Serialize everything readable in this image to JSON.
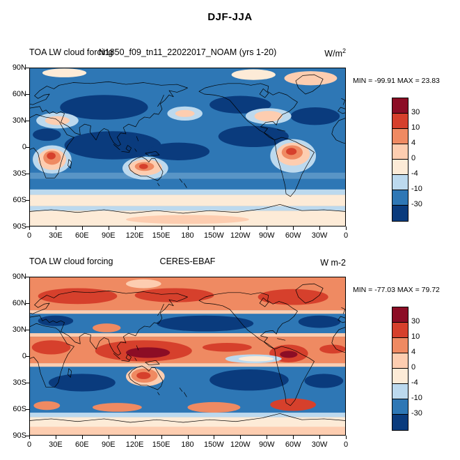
{
  "figure_title": "DJF-JJA",
  "panels": [
    {
      "left_title": "TOA LW cloud forcing",
      "center_title": "N1850_f09_tn11_22022017_NOAM (yrs 1-20)",
      "units_base": "W/m",
      "units_sup": "2",
      "minmax": "MIN = -99.91 MAX =  23.83"
    },
    {
      "left_title": "TOA LW cloud forcing",
      "center_title": "CERES-EBAF",
      "units_base": "W m-2",
      "units_sup": "",
      "minmax": "MIN = -77.03 MAX =  79.72"
    }
  ],
  "axes": {
    "lat_ticks": [
      "90N",
      "60N",
      "30N",
      "0",
      "30S",
      "60S",
      "90S"
    ],
    "lon_ticks": [
      "0",
      "30E",
      "60E",
      "90E",
      "120E",
      "150E",
      "180",
      "150W",
      "120W",
      "90W",
      "60W",
      "30W",
      "0"
    ]
  },
  "colorbar": {
    "labels": [
      "30",
      "10",
      "4",
      "0",
      "-4",
      "-10",
      "-30"
    ],
    "colors": [
      "#8c0d25",
      "#d6402c",
      "#ef8a62",
      "#fdcdb0",
      "#fdebd7",
      "#bcd9ee",
      "#2e77b5",
      "#0a3b7d"
    ]
  },
  "chart_data": [
    {
      "type": "heatmap",
      "figure_title": "DJF-JJA",
      "title": "TOA LW cloud forcing",
      "subtitle": "N1850_f09_tn11_22022017_NOAM (yrs 1-20)",
      "units": "W/m^2",
      "stat_min": -99.91,
      "stat_max": 23.83,
      "colorbar_levels": [
        30,
        10,
        4,
        0,
        -4,
        -10,
        -30
      ],
      "colorbar_colors": [
        "#8c0d25",
        "#d6402c",
        "#ef8a62",
        "#fdcdb0",
        "#fdebd7",
        "#bcd9ee",
        "#2e77b5",
        "#0a3b7d"
      ],
      "x": {
        "ticks": [
          "0",
          "30E",
          "60E",
          "90E",
          "120E",
          "150E",
          "180",
          "150W",
          "120W",
          "90W",
          "60W",
          "30W",
          "0"
        ],
        "range_deg": [
          0,
          360
        ]
      },
      "y": {
        "ticks": [
          "90N",
          "60N",
          "30N",
          "0",
          "30S",
          "60S",
          "90S"
        ],
        "range_deg": [
          90,
          -90
        ]
      },
      "projection": "cylindrical-equidistant",
      "legend_position": "right",
      "notes": "Field mostly negative (blues) over oceans and NH continents; positive (orange/red) centers over southern Africa, Australia and South America; pale band near 60S and Antarctica."
    },
    {
      "type": "heatmap",
      "figure_title": "DJF-JJA",
      "title": "TOA LW cloud forcing",
      "subtitle": "CERES-EBAF",
      "units": "W m-2",
      "stat_min": -77.03,
      "stat_max": 79.72,
      "colorbar_levels": [
        30,
        10,
        4,
        0,
        -4,
        -10,
        -30
      ],
      "colorbar_colors": [
        "#8c0d25",
        "#d6402c",
        "#ef8a62",
        "#fdcdb0",
        "#fdebd7",
        "#bcd9ee",
        "#2e77b5",
        "#0a3b7d"
      ],
      "x": {
        "ticks": [
          "0",
          "30E",
          "60E",
          "90E",
          "120E",
          "150E",
          "180",
          "150W",
          "120W",
          "90W",
          "60W",
          "30W",
          "0"
        ],
        "range_deg": [
          0,
          360
        ]
      },
      "y": {
        "ticks": [
          "90N",
          "60N",
          "30N",
          "0",
          "30S",
          "60S",
          "90S"
        ],
        "range_deg": [
          90,
          -90
        ]
      },
      "projection": "cylindrical-equidistant",
      "legend_position": "right",
      "notes": "Strong positive (red) bands across high northern latitudes and the tropics with deep red over the warm pool and South America; negative (blue/navy) bands in midlatitudes and subtropical oceans; pale Antarctica."
    }
  ]
}
